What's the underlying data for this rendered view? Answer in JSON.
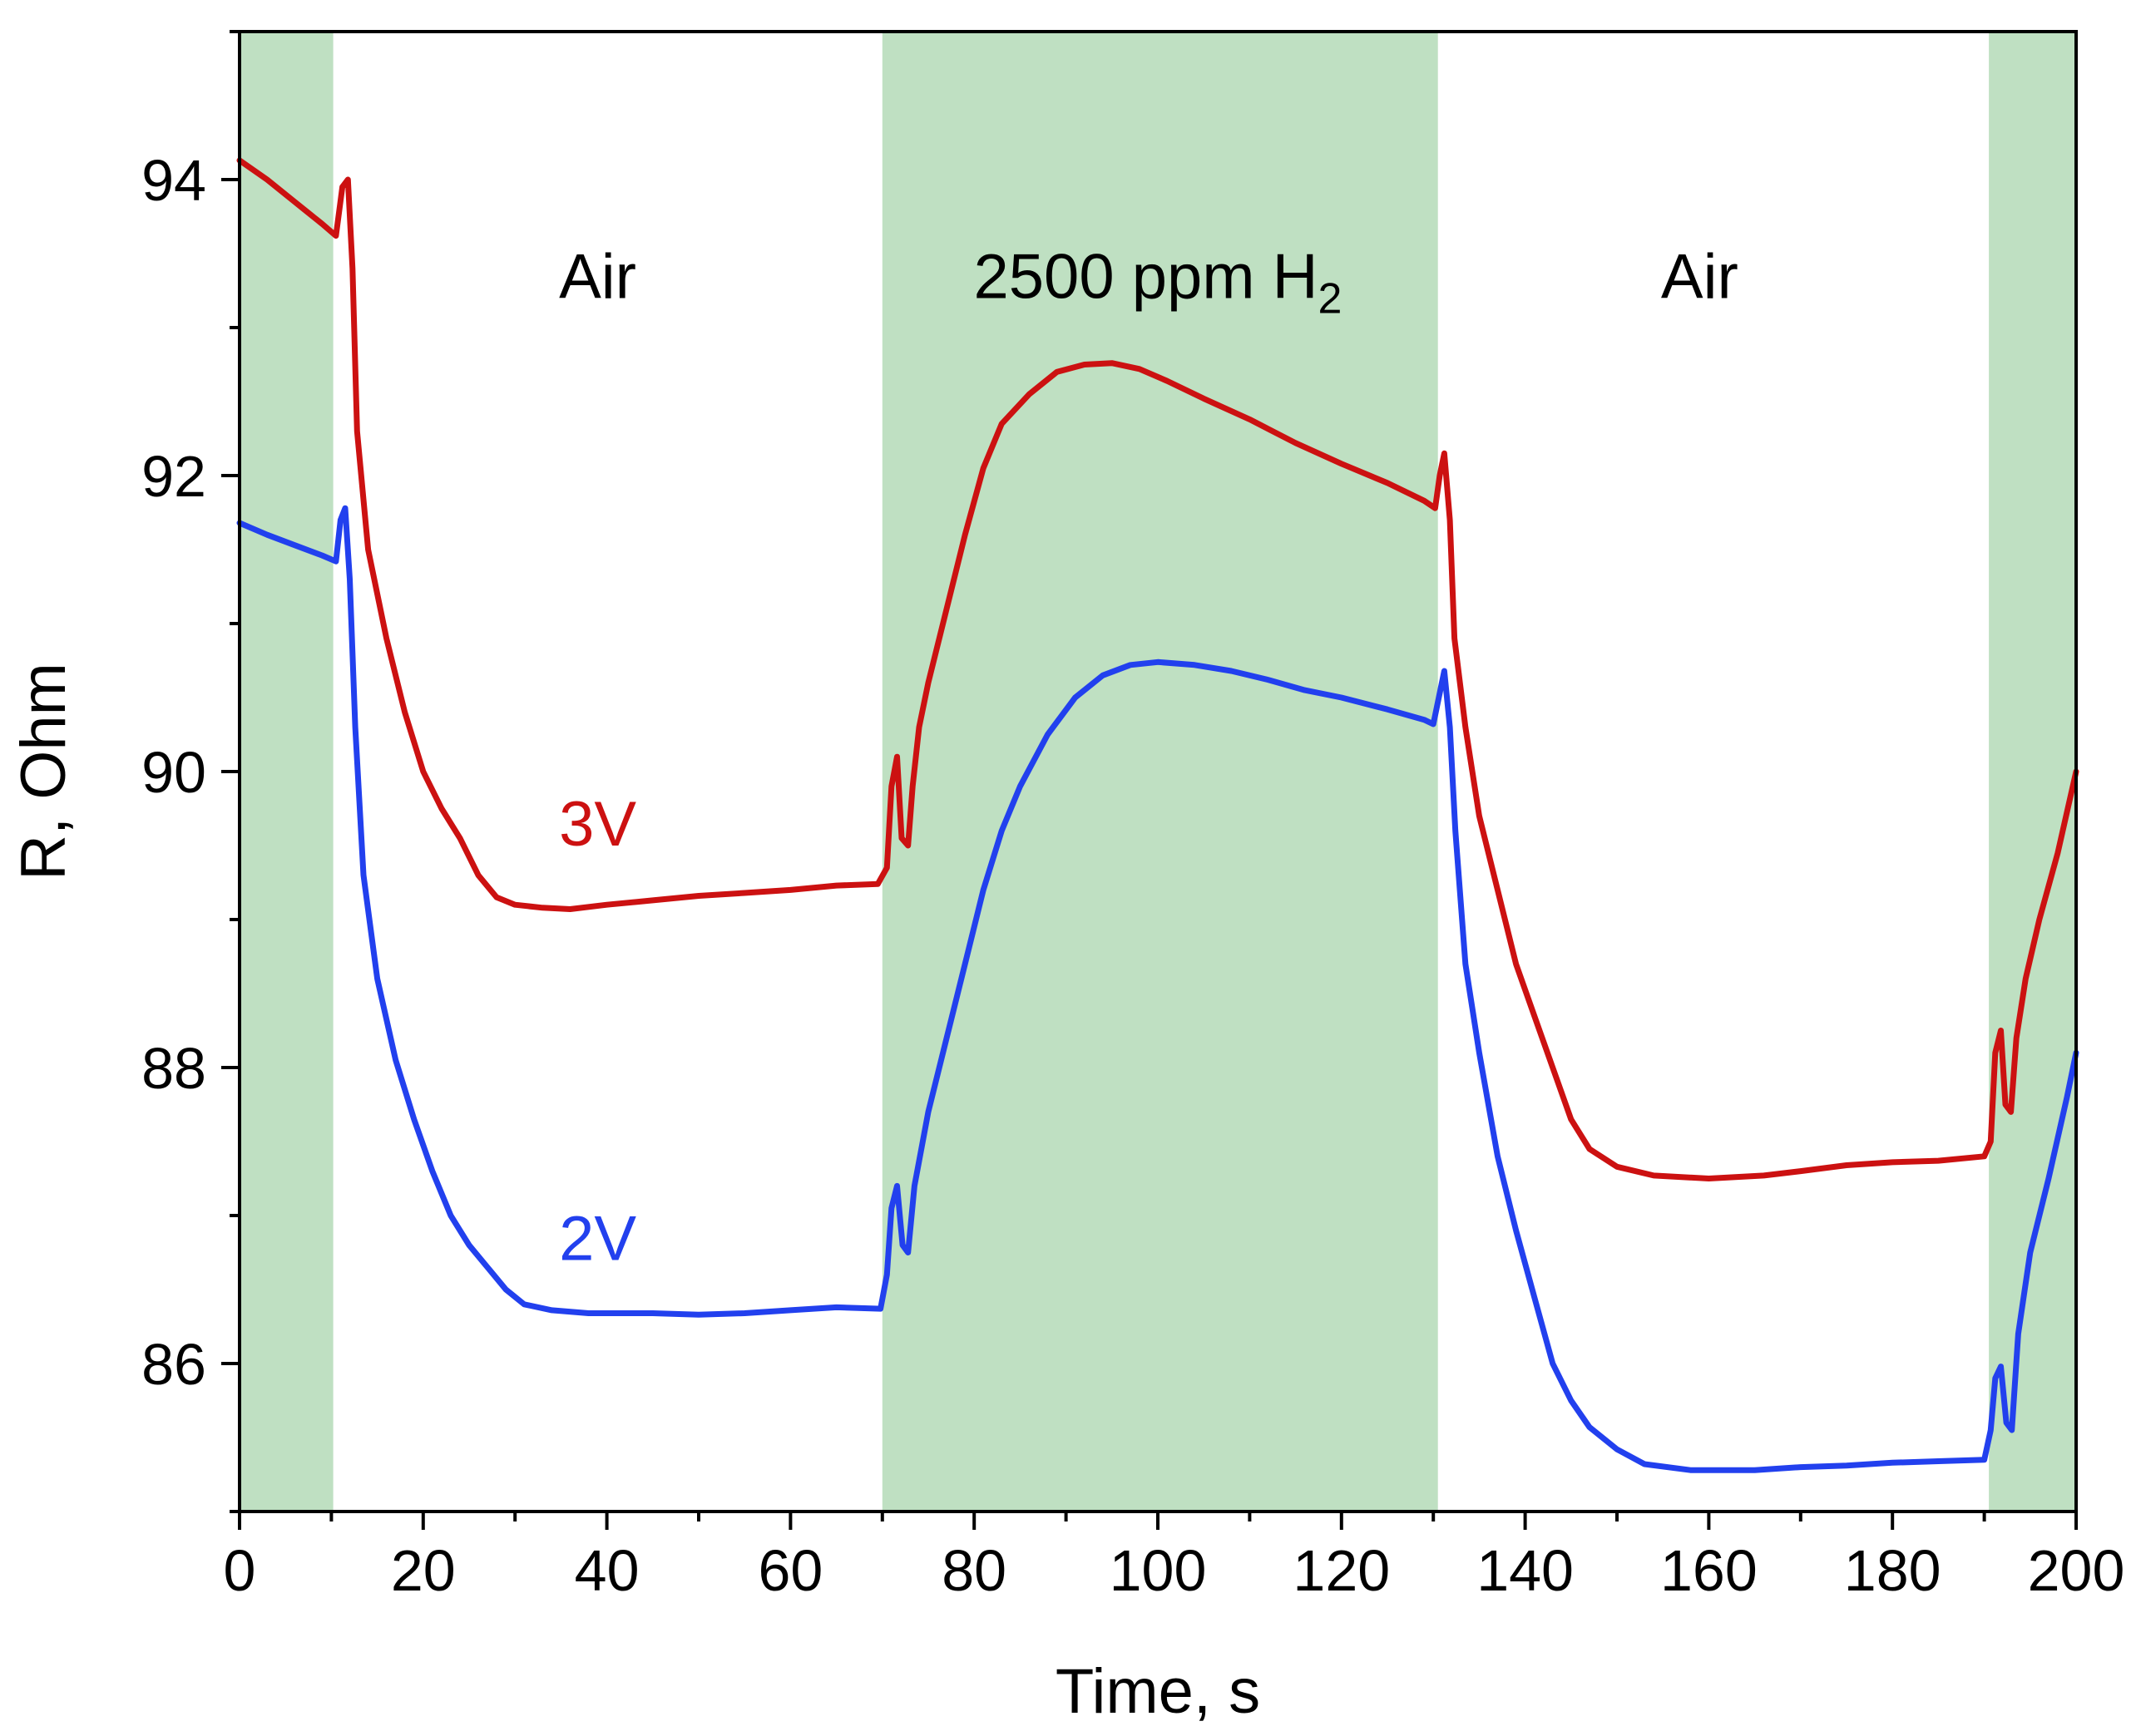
{
  "chart_data": {
    "type": "line",
    "title": "",
    "xlabel": "Time, s",
    "ylabel": "R, Ohm",
    "xlim": [
      0,
      200
    ],
    "ylim": [
      85,
      95
    ],
    "x_major_ticks": [
      0,
      20,
      40,
      60,
      80,
      100,
      120,
      140,
      160,
      180,
      200
    ],
    "x_tick_labels": [
      "0",
      "20",
      "40",
      "60",
      "80",
      "100",
      "120",
      "140",
      "160",
      "180",
      "200"
    ],
    "y_major_ticks": [
      86,
      88,
      90,
      92,
      94
    ],
    "y_tick_labels": [
      "86",
      "88",
      "90",
      "92",
      "94"
    ],
    "grid": false,
    "shaded_regions": [
      {
        "x_start": 0,
        "x_end": 10.2,
        "color": "#bfe0c2"
      },
      {
        "x_start": 70,
        "x_end": 130.5,
        "color": "#bfe0c2"
      },
      {
        "x_start": 190.5,
        "x_end": 200,
        "color": "#bfe0c2"
      }
    ],
    "region_labels": [
      {
        "text": "Air",
        "x": 39,
        "y": 93.2
      },
      {
        "text": "2500 ppm H",
        "subscript": "2",
        "x": 100,
        "y": 93.2
      },
      {
        "text": "Air",
        "x": 159,
        "y": 93.2
      }
    ],
    "series": [
      {
        "name": "3V",
        "color": "#cc1111",
        "label_pos": [
          39,
          89.5
        ],
        "points": [
          [
            0,
            94.13
          ],
          [
            3,
            94.0
          ],
          [
            6,
            93.85
          ],
          [
            9,
            93.7
          ],
          [
            10.5,
            93.62
          ],
          [
            11.2,
            93.95
          ],
          [
            11.8,
            94.0
          ],
          [
            12.3,
            93.4
          ],
          [
            12.8,
            92.3
          ],
          [
            14,
            91.5
          ],
          [
            16,
            90.9
          ],
          [
            18,
            90.4
          ],
          [
            20,
            90.0
          ],
          [
            22,
            89.75
          ],
          [
            24,
            89.55
          ],
          [
            26,
            89.3
          ],
          [
            28,
            89.15
          ],
          [
            30,
            89.1
          ],
          [
            33,
            89.08
          ],
          [
            36,
            89.07
          ],
          [
            40,
            89.1
          ],
          [
            45,
            89.13
          ],
          [
            50,
            89.16
          ],
          [
            55,
            89.18
          ],
          [
            60,
            89.2
          ],
          [
            65,
            89.23
          ],
          [
            69.5,
            89.24
          ],
          [
            70.5,
            89.35
          ],
          [
            71,
            89.9
          ],
          [
            71.6,
            90.1
          ],
          [
            72.1,
            89.55
          ],
          [
            72.8,
            89.5
          ],
          [
            73.3,
            89.9
          ],
          [
            74,
            90.3
          ],
          [
            75,
            90.6
          ],
          [
            77,
            91.1
          ],
          [
            79,
            91.6
          ],
          [
            81,
            92.05
          ],
          [
            83,
            92.35
          ],
          [
            86,
            92.55
          ],
          [
            89,
            92.7
          ],
          [
            92,
            92.75
          ],
          [
            95,
            92.76
          ],
          [
            98,
            92.72
          ],
          [
            101,
            92.64
          ],
          [
            105,
            92.52
          ],
          [
            110,
            92.38
          ],
          [
            115,
            92.22
          ],
          [
            120,
            92.08
          ],
          [
            125,
            91.95
          ],
          [
            129,
            91.83
          ],
          [
            130.2,
            91.78
          ],
          [
            130.7,
            92.0
          ],
          [
            131.2,
            92.15
          ],
          [
            131.8,
            91.7
          ],
          [
            132.3,
            90.9
          ],
          [
            133.5,
            90.3
          ],
          [
            135,
            89.7
          ],
          [
            137,
            89.2
          ],
          [
            139,
            88.7
          ],
          [
            141,
            88.35
          ],
          [
            143,
            88.0
          ],
          [
            145,
            87.65
          ],
          [
            147,
            87.45
          ],
          [
            150,
            87.33
          ],
          [
            154,
            87.27
          ],
          [
            160,
            87.25
          ],
          [
            166,
            87.27
          ],
          [
            170,
            87.3
          ],
          [
            175,
            87.34
          ],
          [
            180,
            87.36
          ],
          [
            185,
            87.37
          ],
          [
            190,
            87.4
          ],
          [
            190.7,
            87.5
          ],
          [
            191.2,
            88.1
          ],
          [
            191.8,
            88.25
          ],
          [
            192.3,
            87.75
          ],
          [
            192.9,
            87.7
          ],
          [
            193.5,
            88.2
          ],
          [
            194.5,
            88.6
          ],
          [
            196,
            89.0
          ],
          [
            198,
            89.45
          ],
          [
            200,
            90.0
          ]
        ]
      },
      {
        "name": "2V",
        "color": "#2240ee",
        "label_pos": [
          39,
          86.7
        ],
        "points": [
          [
            0,
            91.68
          ],
          [
            3,
            91.6
          ],
          [
            6,
            91.53
          ],
          [
            9,
            91.46
          ],
          [
            10.5,
            91.42
          ],
          [
            11,
            91.7
          ],
          [
            11.5,
            91.78
          ],
          [
            12,
            91.3
          ],
          [
            12.6,
            90.3
          ],
          [
            13.5,
            89.3
          ],
          [
            15,
            88.6
          ],
          [
            17,
            88.05
          ],
          [
            19,
            87.65
          ],
          [
            21,
            87.3
          ],
          [
            23,
            87.0
          ],
          [
            25,
            86.8
          ],
          [
            27,
            86.65
          ],
          [
            29,
            86.5
          ],
          [
            31,
            86.4
          ],
          [
            34,
            86.36
          ],
          [
            38,
            86.34
          ],
          [
            45,
            86.34
          ],
          [
            50,
            86.33
          ],
          [
            55,
            86.34
          ],
          [
            60,
            86.36
          ],
          [
            65,
            86.38
          ],
          [
            69.8,
            86.37
          ],
          [
            70.5,
            86.6
          ],
          [
            71,
            87.05
          ],
          [
            71.6,
            87.2
          ],
          [
            72.2,
            86.8
          ],
          [
            72.8,
            86.75
          ],
          [
            73.5,
            87.2
          ],
          [
            75,
            87.7
          ],
          [
            77,
            88.2
          ],
          [
            79,
            88.7
          ],
          [
            81,
            89.2
          ],
          [
            83,
            89.6
          ],
          [
            85,
            89.9
          ],
          [
            88,
            90.25
          ],
          [
            91,
            90.5
          ],
          [
            94,
            90.65
          ],
          [
            97,
            90.72
          ],
          [
            100,
            90.74
          ],
          [
            104,
            90.72
          ],
          [
            108,
            90.68
          ],
          [
            112,
            90.62
          ],
          [
            116,
            90.55
          ],
          [
            120,
            90.5
          ],
          [
            125,
            90.42
          ],
          [
            129,
            90.35
          ],
          [
            130,
            90.32
          ],
          [
            130.6,
            90.5
          ],
          [
            131.2,
            90.68
          ],
          [
            131.8,
            90.3
          ],
          [
            132.4,
            89.6
          ],
          [
            133.5,
            88.7
          ],
          [
            135,
            88.1
          ],
          [
            137,
            87.4
          ],
          [
            139,
            86.9
          ],
          [
            141,
            86.45
          ],
          [
            143,
            86.0
          ],
          [
            145,
            85.75
          ],
          [
            147,
            85.57
          ],
          [
            150,
            85.42
          ],
          [
            153,
            85.32
          ],
          [
            158,
            85.28
          ],
          [
            165,
            85.28
          ],
          [
            170,
            85.3
          ],
          [
            175,
            85.31
          ],
          [
            180,
            85.33
          ],
          [
            185,
            85.34
          ],
          [
            190,
            85.35
          ],
          [
            190.7,
            85.55
          ],
          [
            191.2,
            85.9
          ],
          [
            191.8,
            85.98
          ],
          [
            192.4,
            85.6
          ],
          [
            193,
            85.55
          ],
          [
            193.7,
            86.2
          ],
          [
            195,
            86.75
          ],
          [
            197,
            87.25
          ],
          [
            199,
            87.8
          ],
          [
            200,
            88.1
          ]
        ]
      }
    ]
  }
}
